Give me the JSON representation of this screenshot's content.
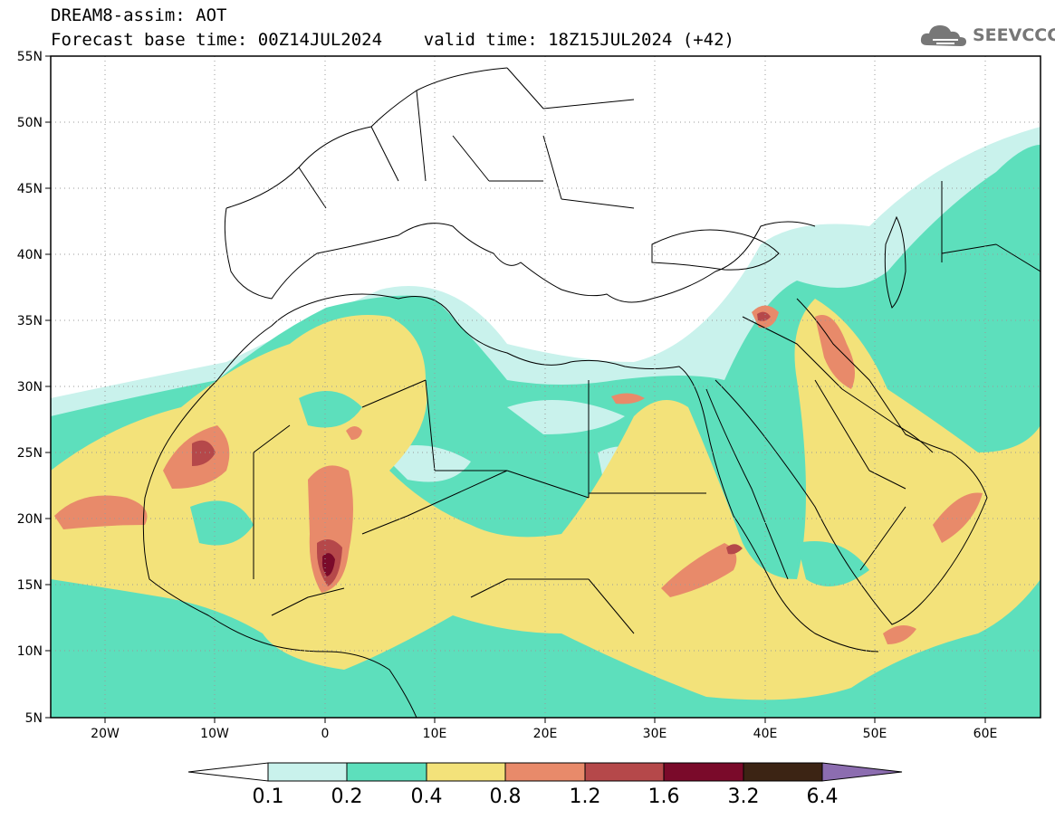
{
  "title": {
    "line1": "DREAM8-assim: AOT",
    "line2": "Forecast base time: 00Z14JUL2024    valid time: 18Z15JUL2024 (+42)"
  },
  "logo": {
    "text": "SEEVCCC",
    "icon": "cloud-icon"
  },
  "map": {
    "lat_labels": [
      "55N",
      "50N",
      "45N",
      "40N",
      "35N",
      "30N",
      "25N",
      "20N",
      "15N",
      "10N",
      "5N"
    ],
    "lon_labels": [
      "20W",
      "10W",
      "0",
      "10E",
      "20E",
      "30E",
      "40E",
      "50E",
      "60E"
    ],
    "lat_range": [
      5,
      55
    ],
    "lon_range": [
      -25,
      65
    ],
    "grid": "dotted"
  },
  "colorbar": {
    "labels": [
      "0.1",
      "0.2",
      "0.4",
      "0.8",
      "1.2",
      "1.6",
      "3.2",
      "6.4"
    ],
    "colors": [
      "#ffffff",
      "#c9f2ec",
      "#5ddfbc",
      "#f3e27a",
      "#e88a6a",
      "#b5484a",
      "#7a0a2a",
      "#3c2414",
      "#8c6db0"
    ]
  }
}
